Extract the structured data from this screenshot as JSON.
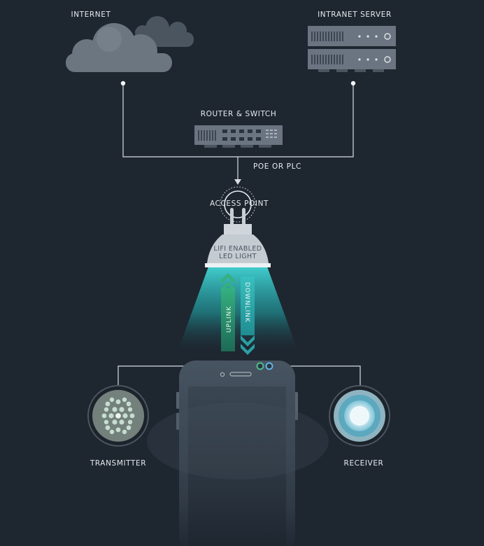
{
  "labels": {
    "internet": "INTERNET",
    "intranet_server": "INTRANET SERVER",
    "router_switch": "ROUTER & SWITCH",
    "poe_or_plc": "POE OR PLC",
    "access_point": "ACCESS POINT",
    "led_light_line1": "LIFI ENABLED",
    "led_light_line2": "LED LIGHT",
    "uplink": "UPLINK",
    "downlink": "DOWNLINK",
    "transmitter": "TRANSMITTER",
    "receiver": "RECEIVER"
  },
  "colors": {
    "background": "#1e2630",
    "line": "#d7dde2",
    "uplink": "#2fa276",
    "downlink": "#2bb5b4",
    "light_beam": "#35c8c8"
  },
  "icons": [
    "cloud-icon",
    "server-icon",
    "router-icon",
    "wifi-icon",
    "led-bulb-icon",
    "smartphone-icon",
    "transmitter-icon",
    "receiver-icon"
  ]
}
